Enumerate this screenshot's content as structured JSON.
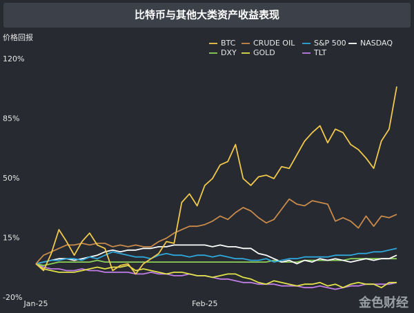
{
  "chart_data": {
    "type": "line",
    "title": "比特币与其他大类资产收益表现",
    "y_label": "价格回报",
    "categories": [
      "Jan-25",
      null,
      null,
      null,
      null,
      null,
      null,
      null,
      null,
      null,
      null,
      null,
      null,
      null,
      null,
      null,
      null,
      null,
      null,
      null,
      null,
      null,
      "Feb-25",
      null,
      null,
      null,
      null,
      null,
      null,
      null,
      null,
      null,
      null,
      null,
      null,
      null,
      null,
      null,
      null,
      null,
      null,
      null,
      null,
      null,
      null,
      null,
      null,
      null
    ],
    "ylim": [
      -20,
      120
    ],
    "yticks": [
      {
        "value": -20,
        "label": "-20%"
      },
      {
        "value": 15,
        "label": "15%"
      },
      {
        "value": 50,
        "label": "50%"
      },
      {
        "value": 85,
        "label": "85%"
      },
      {
        "value": 120,
        "label": "120%"
      }
    ],
    "grid": false,
    "legend": "upper right",
    "series": [
      {
        "name": "BTC",
        "color": "#f2c94c",
        "values": [
          0,
          -4,
          6,
          20,
          13,
          5,
          13,
          18,
          11,
          9,
          -4,
          -1,
          0,
          -6,
          0,
          3,
          6,
          13,
          12,
          36,
          41,
          34,
          46,
          50,
          58,
          60,
          70,
          50,
          46,
          51,
          52,
          50,
          57,
          56,
          64,
          72,
          77,
          81,
          71,
          79,
          77,
          70,
          67,
          62,
          56,
          72,
          79,
          104
        ]
      },
      {
        "name": "CRUDE OIL",
        "color": "#c98a4b",
        "values": [
          0,
          5,
          7,
          9,
          11,
          11,
          12,
          11,
          12,
          12,
          10,
          11,
          10,
          11,
          10,
          10,
          13,
          15,
          18,
          20,
          22,
          22,
          23,
          25,
          28,
          26,
          30,
          33,
          31,
          27,
          24,
          26,
          32,
          38,
          35,
          34,
          37,
          36,
          35,
          25,
          27,
          25,
          21,
          28,
          22,
          28,
          27,
          29
        ]
      },
      {
        "name": "S&P 500",
        "color": "#2ea8dc",
        "values": [
          0,
          1,
          2,
          2,
          3,
          3,
          2,
          4,
          3,
          5,
          7,
          6,
          5,
          4,
          4,
          3,
          5,
          6,
          5,
          5,
          4,
          5,
          5,
          4,
          5,
          4,
          3,
          3,
          2,
          2,
          3,
          1,
          2,
          3,
          3,
          4,
          4,
          4,
          4,
          5,
          5,
          5,
          6,
          6,
          7,
          7,
          8,
          9
        ]
      },
      {
        "name": "NASDAQ",
        "color": "#ffffff",
        "values": [
          0,
          1,
          2,
          3,
          3,
          2,
          3,
          4,
          5,
          7,
          8,
          7,
          8,
          8,
          9,
          9,
          10,
          10,
          11,
          11,
          11,
          11,
          11,
          10,
          11,
          10,
          10,
          9,
          9,
          6,
          5,
          3,
          1,
          2,
          0,
          2,
          1,
          3,
          2,
          3,
          2,
          1,
          2,
          3,
          2,
          3,
          3,
          5
        ]
      },
      {
        "name": "DXY",
        "color": "#8fd35b",
        "values": [
          0,
          -1,
          0,
          1,
          1,
          1,
          1,
          1,
          2,
          1,
          1,
          1,
          1,
          1,
          1,
          1,
          1,
          1,
          1,
          1,
          1,
          1,
          1,
          1,
          1,
          1,
          1,
          1,
          1,
          1,
          1,
          2,
          1,
          1,
          1,
          2,
          2,
          2,
          2,
          2,
          2,
          3,
          3,
          3,
          3,
          3,
          3,
          3
        ]
      },
      {
        "name": "GOLD",
        "color": "#e3e34a",
        "values": [
          0,
          -3,
          -4,
          -5,
          -5,
          -5,
          -4,
          -3,
          -2,
          -3,
          -2,
          -2,
          -1,
          -4,
          -3,
          -4,
          -5,
          -6,
          -5,
          -5,
          -6,
          -7,
          -7,
          -8,
          -7,
          -6,
          -6,
          -8,
          -9,
          -11,
          -12,
          -10,
          -11,
          -12,
          -13,
          -12,
          -12,
          -11,
          -13,
          -12,
          -14,
          -12,
          -11,
          -12,
          -12,
          -14,
          -11,
          -11
        ]
      },
      {
        "name": "TLT",
        "color": "#c07ee6",
        "values": [
          0,
          -2,
          -3,
          -3,
          -4,
          -4,
          -3,
          -4,
          -4,
          -5,
          -5,
          -5,
          -5,
          -6,
          -6,
          -5,
          -6,
          -6,
          -7,
          -7,
          -6,
          -7,
          -7,
          -8,
          -9,
          -9,
          -10,
          -11,
          -11,
          -12,
          -12,
          -12,
          -13,
          -13,
          -13,
          -14,
          -14,
          -13,
          -14,
          -15,
          -14,
          -13,
          -13,
          -12,
          -12,
          -12,
          -12,
          -11
        ]
      }
    ]
  },
  "watermark": "金色财经"
}
